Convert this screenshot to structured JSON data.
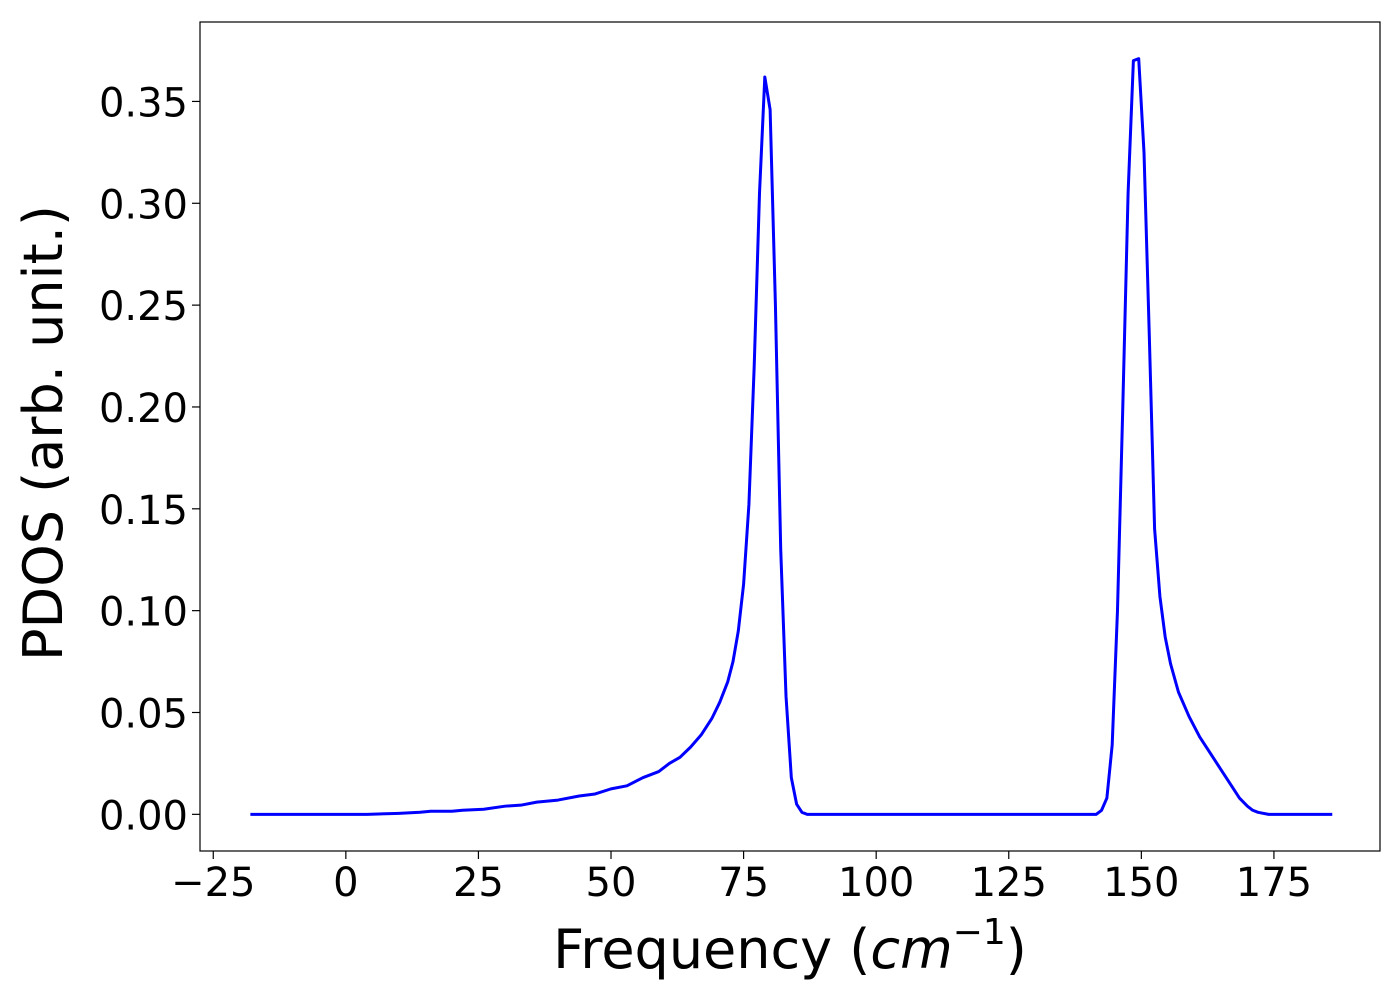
{
  "chart_data": {
    "type": "line",
    "xlabel": "Frequency (cm⁻¹)",
    "xlabel_parts": {
      "prefix": "Frequency (",
      "unit": "cm",
      "exponent": "−1",
      "suffix": ")"
    },
    "ylabel": "PDOS (arb. unit.)",
    "xlim": [
      -27.5,
      195
    ],
    "ylim": [
      -0.018,
      0.389
    ],
    "xticks": [
      {
        "value": -25,
        "label": "−25"
      },
      {
        "value": 0,
        "label": "0"
      },
      {
        "value": 25,
        "label": "25"
      },
      {
        "value": 50,
        "label": "50"
      },
      {
        "value": 75,
        "label": "75"
      },
      {
        "value": 100,
        "label": "100"
      },
      {
        "value": 125,
        "label": "125"
      },
      {
        "value": 150,
        "label": "150"
      },
      {
        "value": 175,
        "label": "175"
      }
    ],
    "yticks": [
      {
        "value": 0.0,
        "label": "0.00"
      },
      {
        "value": 0.05,
        "label": "0.05"
      },
      {
        "value": 0.1,
        "label": "0.10"
      },
      {
        "value": 0.15,
        "label": "0.15"
      },
      {
        "value": 0.2,
        "label": "0.20"
      },
      {
        "value": 0.25,
        "label": "0.25"
      },
      {
        "value": 0.3,
        "label": "0.30"
      },
      {
        "value": 0.35,
        "label": "0.35"
      }
    ],
    "grid": false,
    "series": [
      {
        "color": "#0000ff",
        "points": [
          [
            -18,
            0.0
          ],
          [
            0,
            0.0
          ],
          [
            4,
            0.0
          ],
          [
            10,
            0.0005
          ],
          [
            14,
            0.001
          ],
          [
            16,
            0.0015
          ],
          [
            20,
            0.0015
          ],
          [
            22,
            0.002
          ],
          [
            26,
            0.0025
          ],
          [
            30,
            0.004
          ],
          [
            33,
            0.0045
          ],
          [
            36,
            0.006
          ],
          [
            40,
            0.007
          ],
          [
            44,
            0.009
          ],
          [
            47,
            0.01
          ],
          [
            50,
            0.0125
          ],
          [
            53,
            0.014
          ],
          [
            56,
            0.018
          ],
          [
            59,
            0.021
          ],
          [
            61,
            0.025
          ],
          [
            63,
            0.028
          ],
          [
            65,
            0.033
          ],
          [
            67,
            0.039
          ],
          [
            69,
            0.047
          ],
          [
            70.5,
            0.055
          ],
          [
            72,
            0.065
          ],
          [
            73,
            0.075
          ],
          [
            74,
            0.09
          ],
          [
            75,
            0.113
          ],
          [
            76,
            0.152
          ],
          [
            77,
            0.22
          ],
          [
            78,
            0.305
          ],
          [
            79,
            0.362
          ],
          [
            80,
            0.346
          ],
          [
            81,
            0.25
          ],
          [
            82,
            0.13
          ],
          [
            83,
            0.058
          ],
          [
            84,
            0.018
          ],
          [
            85,
            0.005
          ],
          [
            86,
            0.001
          ],
          [
            87,
            0.0
          ],
          [
            100,
            0.0
          ],
          [
            125,
            0.0
          ],
          [
            140,
            0.0
          ],
          [
            141.5,
            0.0
          ],
          [
            142.5,
            0.002
          ],
          [
            143.5,
            0.008
          ],
          [
            144.5,
            0.034
          ],
          [
            145.5,
            0.1
          ],
          [
            146.5,
            0.2
          ],
          [
            147.5,
            0.305
          ],
          [
            148.5,
            0.37
          ],
          [
            149.5,
            0.371
          ],
          [
            150.5,
            0.325
          ],
          [
            151.5,
            0.235
          ],
          [
            152.5,
            0.14
          ],
          [
            153.5,
            0.107
          ],
          [
            154.5,
            0.087
          ],
          [
            155.5,
            0.074
          ],
          [
            157,
            0.06
          ],
          [
            159,
            0.048
          ],
          [
            161,
            0.038
          ],
          [
            163,
            0.03
          ],
          [
            165,
            0.022
          ],
          [
            167,
            0.014
          ],
          [
            168.5,
            0.008
          ],
          [
            170,
            0.004
          ],
          [
            171,
            0.002
          ],
          [
            172,
            0.001
          ],
          [
            174,
            0.0
          ],
          [
            186,
            0.0
          ]
        ]
      }
    ]
  }
}
